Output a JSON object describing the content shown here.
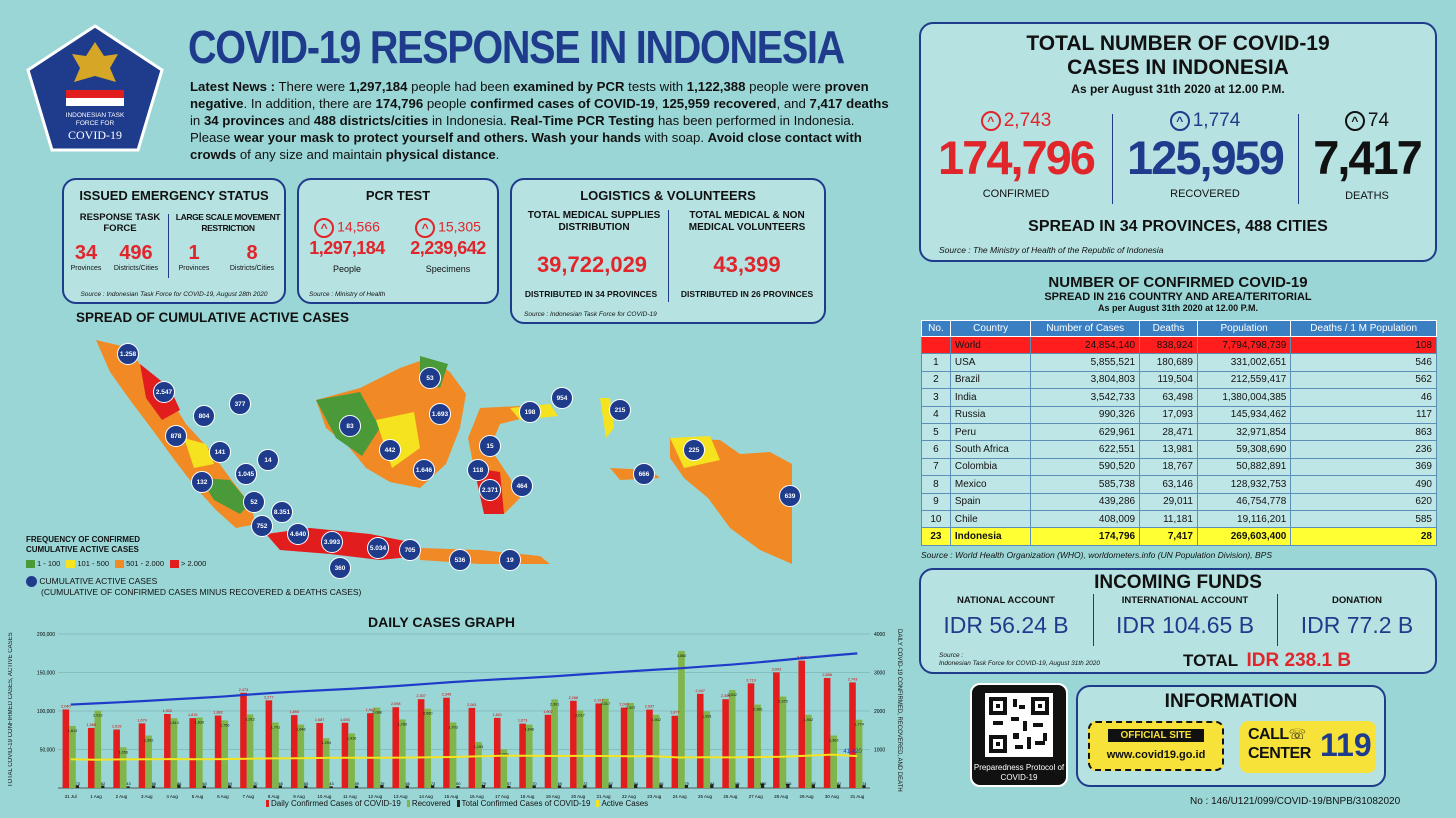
{
  "header": {
    "title": "COVID-19 RESPONSE IN INDONESIA",
    "logo_text_1": "INDONESIAN TASK",
    "logo_text_2": "FORCE FOR",
    "logo_text_3": "COVID-19"
  },
  "news": {
    "label": "Latest News :",
    "t1": " There were ",
    "v1": "1,297,184",
    "t2": " people had been ",
    "v2": "examined by PCR",
    "t3": " tests with ",
    "v3": "1,122,388",
    "t4": " people were ",
    "v4": "proven negative",
    "t5": ". In addition, there are ",
    "v5": "174,796",
    "t6": " people ",
    "v6": "confirmed cases of COVID-19",
    "t7": ", ",
    "v7": "125,959 recovered",
    "t8": ", and ",
    "v8": "7,417 deaths",
    "t9": " in ",
    "v9": "34 provinces",
    "t10": " and ",
    "v10": "488 districts/cities",
    "t11": " in Indonesia. ",
    "v11": "Real-Time PCR Testing",
    "t12": " has been performed in Indonesia. Please ",
    "v12": "wear your mask to protect yourself and others. Wash your hands",
    "t13": " with soap. ",
    "v13": "Avoid close contact with crowds",
    "t14": " of any size and maintain ",
    "v14": "physical distance",
    "t15": "."
  },
  "emergency": {
    "title": "ISSUED EMERGENCY STATUS",
    "col1": "RESPONSE TASK FORCE",
    "col2": "LARGE SCALE MOVEMENT RESTRICTION",
    "v1": "34",
    "l1": "Provinces",
    "v2": "496",
    "l2": "Districts/Cities",
    "v3": "1",
    "l3": "Provinces",
    "v4": "8",
    "l4": "Districts/Cities",
    "source": "Source : Indonesian Task Force for COVID-19, August 28th 2020"
  },
  "pcr": {
    "title": "PCR TEST",
    "inc1": "14,566",
    "v1": "1,297,184",
    "l1": "People",
    "inc2": "15,305",
    "v2": "2,239,642",
    "l2": "Specimens",
    "source": "Source : Ministry of Health"
  },
  "logistics": {
    "title": "LOGISTICS & VOLUNTEERS",
    "h1": "TOTAL MEDICAL SUPPLIES DISTRIBUTION",
    "v1": "39,722,029",
    "f1": "DISTRIBUTED IN 34 PROVINCES",
    "h2": "TOTAL MEDICAL & NON MEDICAL VOLUNTEERS",
    "v2": "43,399",
    "f2": "DISTRIBUTED IN 26 PROVINCES",
    "source": "Source : Indonesian Task Force for COVID-19"
  },
  "totals": {
    "title1": "TOTAL NUMBER OF COVID-19",
    "title2": "CASES IN INDONESIA",
    "asof": "As per August 31th 2020 at 12.00 P.M.",
    "confirmed_inc": "2,743",
    "confirmed": "174,796",
    "confirmed_label": "CONFIRMED",
    "recovered_inc": "1,774",
    "recovered": "125,959",
    "recovered_label": "RECOVERED",
    "deaths_inc": "74",
    "deaths": "7,417",
    "deaths_label": "DEATHS",
    "spread": "SPREAD IN 34 PROVINCES, 488 CITIES",
    "source": "Source : The Ministry of Health of the Republic of Indonesia"
  },
  "map": {
    "title": "SPREAD OF CUMULATIVE ACTIVE CASES",
    "legend_title1": "FREQUENCY OF CONFIRMED",
    "legend_title2": "CUMULATIVE ACTIVE CASES",
    "legend": [
      {
        "label": "1 - 100",
        "color": "#4a9a3a"
      },
      {
        "label": "101 - 500",
        "color": "#f4e31e"
      },
      {
        "label": "501 - 2.000",
        "color": "#f18a25"
      },
      {
        "label": "> 2.000",
        "color": "#e21d1d"
      }
    ],
    "circle_label1": "CUMULATIVE ACTIVE CASES",
    "circle_label2": "(CUMULATIVE OF CONFIRMED CASES MINUS RECOVERED & DEATHS CASES)",
    "markers": [
      "1.258",
      "2.547",
      "804",
      "377",
      "878",
      "141",
      "14",
      "132",
      "1.045",
      "52",
      "8.351",
      "752",
      "4.640",
      "3.993",
      "360",
      "5.034",
      "705",
      "536",
      "19",
      "83",
      "442",
      "1.646",
      "53",
      "1.693",
      "198",
      "954",
      "215",
      "15",
      "118",
      "2.371",
      "464",
      "666",
      "225",
      "639"
    ]
  },
  "graph": {
    "title": "DAILY CASES GRAPH",
    "y_left_label": "TOTAL COVID-19 CONFIRMED CASES, ACTIVE CASES",
    "y_right_label": "DAILY COVID-19 CONFIRMED, RECOVERED, AND DEATH",
    "legend": [
      "Daily Confirmed Cases of COVID-19",
      "Recovered",
      "Total Confirmed Cases of COVID-19",
      "Active Cases"
    ],
    "last_active": "41,420"
  },
  "chart_data": {
    "type": "bar",
    "title": "DAILY CASES GRAPH",
    "categories": [
      "31 Jul",
      "1 Aug",
      "2 Aug",
      "3 Aug",
      "4 Aug",
      "5 Aug",
      "6 Aug",
      "7 Aug",
      "8 Aug",
      "9 Aug",
      "10 Aug",
      "11 Aug",
      "12 Aug",
      "13 Aug",
      "14 Aug",
      "15 Aug",
      "16 Aug",
      "17 Aug",
      "18 Aug",
      "19 Aug",
      "20 Aug",
      "21 Aug",
      "22 Aug",
      "23 Aug",
      "24 Aug",
      "25 Aug",
      "26 Aug",
      "27 Aug",
      "28 Aug",
      "29 Aug",
      "30 Aug",
      "31 Aug"
    ],
    "left_ticks": [
      "200,000",
      "150,000",
      "100,000",
      "50,000"
    ],
    "right_ticks": [
      "4000",
      "3000",
      "2000",
      "1000"
    ],
    "left_ylim": [
      0,
      200000
    ],
    "right_ylim": [
      0,
      4000
    ],
    "series": [
      {
        "name": "Daily Confirmed Cases of COVID-19",
        "axis": "right",
        "color": "#e21d1d",
        "values": [
          2040,
          1560,
          1519,
          1679,
          1922,
          1815,
          1882,
          2473,
          2277,
          1893,
          1687,
          1693,
          1942,
          2098,
          2307,
          2345,
          2081,
          1821,
          1673,
          1902,
          2266,
          2197,
          2090,
          2037,
          1877,
          2447,
          2306,
          2719,
          3003,
          3308,
          2858,
          2743
        ]
      },
      {
        "name": "Recovered",
        "axis": "right",
        "color": "#7fb54a",
        "values": [
          1613,
          2012,
          1056,
          1362,
          1813,
          1830,
          1756,
          1912,
          1701,
          1646,
          1294,
          1416,
          2088,
          1780,
          2060,
          1703,
          1193,
          1003,
          1646,
          2301,
          2017,
          2317,
          2207,
          1902,
          3560,
          1991,
          2542,
          2166,
          2375,
          1902,
          1363,
          1774
        ]
      },
      {
        "name": "Deaths",
        "axis": "right",
        "color": "#222222",
        "values": [
          73,
          62,
          43,
          66,
          86,
          64,
          69,
          70,
          65,
          65,
          43,
          59,
          79,
          65,
          73,
          50,
          79,
          57,
          70,
          69,
          72,
          82,
          94,
          86,
          79,
          94,
          96,
          120,
          105,
          92,
          82,
          74
        ]
      },
      {
        "name": "Total Confirmed Cases of COVID-19",
        "axis": "left",
        "color": "#1f3cc9",
        "values": [
          108376,
          109936,
          111455,
          113134,
          115056,
          116871,
          118753,
          121226,
          123503,
          125396,
          127083,
          128776,
          130718,
          132816,
          135123,
          137468,
          139549,
          141370,
          143043,
          144945,
          147211,
          149408,
          151498,
          153535,
          155412,
          157859,
          160165,
          162884,
          165887,
          169195,
          172053,
          174796
        ]
      },
      {
        "name": "Active Cases",
        "axis": "left",
        "color": "#f4e31e",
        "values": [
          37300,
          36700,
          37100,
          37400,
          37500,
          37400,
          37500,
          38000,
          38500,
          38700,
          39100,
          39300,
          39300,
          39500,
          39700,
          40300,
          41100,
          41900,
          41900,
          41500,
          41700,
          41500,
          41300,
          41300,
          39600,
          40000,
          39700,
          40100,
          40600,
          41900,
          43300,
          41420
        ]
      }
    ]
  },
  "countries": {
    "title": "NUMBER OF CONFIRMED COVID-19",
    "subtitle": "SPREAD IN 216 COUNTRY AND AREA/TERITORIAL",
    "asof": "As per August 31th 2020 at 12.00 P.M.",
    "headers": [
      "No.",
      "Country",
      "Number of Cases",
      "Deaths",
      "Population",
      "Deaths / 1 M Population"
    ],
    "rows": [
      [
        "",
        "World",
        "24,854,140",
        "838,924",
        "7,794,798,739",
        "108"
      ],
      [
        "1",
        "USA",
        "5,855,521",
        "180,689",
        "331,002,651",
        "546"
      ],
      [
        "2",
        "Brazil",
        "3,804,803",
        "119,504",
        "212,559,417",
        "562"
      ],
      [
        "3",
        "India",
        "3,542,733",
        "63,498",
        "1,380,004,385",
        "46"
      ],
      [
        "4",
        "Russia",
        "990,326",
        "17,093",
        "145,934,462",
        "117"
      ],
      [
        "5",
        "Peru",
        "629,961",
        "28,471",
        "32,971,854",
        "863"
      ],
      [
        "6",
        "South Africa",
        "622,551",
        "13,981",
        "59,308,690",
        "236"
      ],
      [
        "7",
        "Colombia",
        "590,520",
        "18,767",
        "50,882,891",
        "369"
      ],
      [
        "8",
        "Mexico",
        "585,738",
        "63,146",
        "128,932,753",
        "490"
      ],
      [
        "9",
        "Spain",
        "439,286",
        "29,011",
        "46,754,778",
        "620"
      ],
      [
        "10",
        "Chile",
        "408,009",
        "11,181",
        "19,116,201",
        "585"
      ],
      [
        "23",
        "Indonesia",
        "174,796",
        "7,417",
        "269,603,400",
        "28"
      ]
    ],
    "source": "Source : World Health Organization (WHO), worldometers.info (UN Population Division), BPS"
  },
  "funds": {
    "title": "INCOMING FUNDS",
    "l1": "NATIONAL ACCOUNT",
    "v1": "IDR 56.24 B",
    "l2": "INTERNATIONAL ACCOUNT",
    "v2": "IDR 104.65 B",
    "l3": "DONATION",
    "v3": "IDR 77.2 B",
    "source1": "Source :",
    "source2": "Indonesian Task Force for COVID-19, August 31th 2020",
    "total_label": "TOTAL",
    "total": "IDR 238.1 B"
  },
  "info": {
    "qr_label1": "Preparedness Protocol of",
    "qr_label2": "COVID-19",
    "title": "INFORMATION",
    "site_label": "OFFICIAL SITE",
    "site": "www.covid19.go.id",
    "call1": "CALL",
    "call2": "CENTER",
    "call_num": "119"
  },
  "footer": {
    "number": "No : 146/U121/099/COVID-19/BNPB/31082020"
  }
}
